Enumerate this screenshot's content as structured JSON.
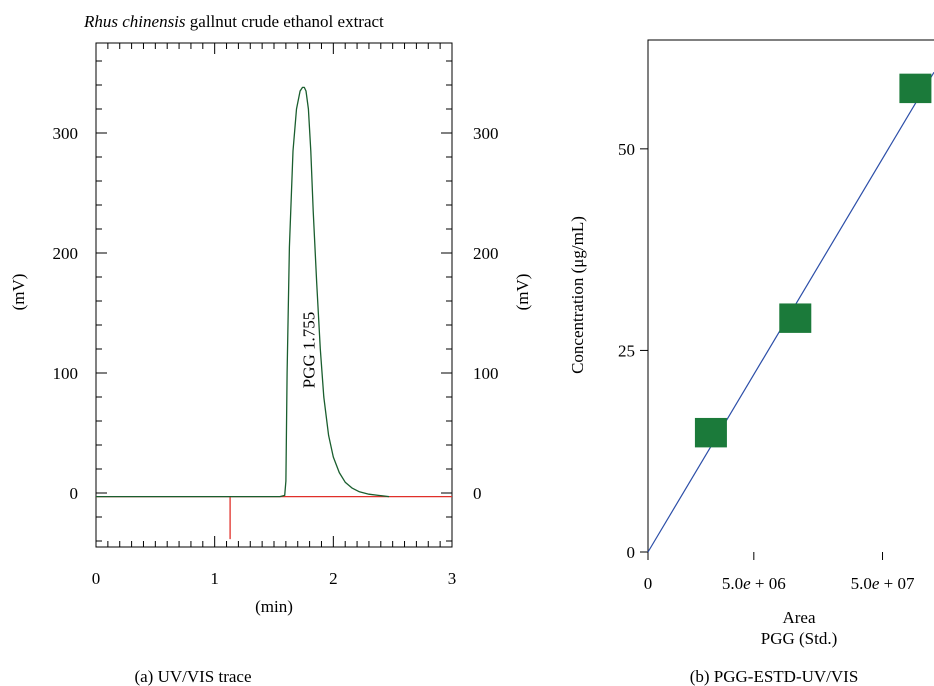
{
  "panel_a": {
    "title_italic": "Rhus chinensis",
    "title_rest": " gallnut crude ethanol extract",
    "xlabel": "(min)",
    "ylabel_left": "(mV)",
    "ylabel_right": "(mV)",
    "caption": "(a)  UV/VIS trace"
  },
  "panel_b": {
    "ylabel": "Concentration (μg/mL)",
    "xlabel_line1": "Area",
    "xlabel_line2": "PGG (Std.)",
    "caption": "(b)  PGG-ESTD-UV/VIS"
  },
  "chart_data": [
    {
      "type": "line",
      "title": "Rhus chinensis gallnut crude ethanol extract",
      "xlabel": "(min)",
      "ylabel": "(mV)",
      "xlim": [
        0,
        3
      ],
      "ylim": [
        -45,
        375
      ],
      "x_ticks": [
        0,
        1,
        2,
        3
      ],
      "y_ticks": [
        0,
        100,
        200,
        300
      ],
      "x_tick_labels": [
        "0",
        "1",
        "2",
        "3"
      ],
      "y_tick_labels": [
        "0",
        "100",
        "200",
        "300"
      ],
      "peak_annotation": {
        "label": "PGG 1.755",
        "x": 1.755
      },
      "series": [
        {
          "color": "#1a5e2e",
          "x": [
            0,
            1.55,
            1.59,
            1.6,
            1.61,
            1.63,
            1.66,
            1.69,
            1.72,
            1.74,
            1.755,
            1.77,
            1.79,
            1.81,
            1.83,
            1.86,
            1.89,
            1.92,
            1.96,
            2.0,
            2.05,
            2.1,
            2.16,
            2.22,
            2.3,
            2.38,
            2.47
          ],
          "y": [
            -3,
            -3,
            -2,
            10,
            100,
            205,
            285,
            320,
            335,
            338,
            338,
            335,
            320,
            285,
            235,
            175,
            120,
            80,
            48,
            30,
            17,
            9,
            4,
            1,
            -1,
            -2,
            -3
          ]
        },
        {
          "color": "#e0302a",
          "x": [
            0,
            1.13,
            1.13,
            1.13,
            3
          ],
          "y": [
            -3,
            -3,
            -38,
            -3,
            -3
          ]
        }
      ]
    },
    {
      "type": "scatter",
      "xlabel": "Area\nPGG (Std.)",
      "ylabel": "Concentration (μg/mL)",
      "ylim": [
        0,
        63.5
      ],
      "y_ticks": [
        0,
        25,
        50
      ],
      "y_tick_labels": [
        "0",
        "25",
        "50"
      ],
      "x_tick_labels": [
        "0",
        "5.0e + 06",
        "5.0e + 07"
      ],
      "series": [
        {
          "color": "#1b7a3a",
          "marker": "square",
          "x_fraction": [
            0.22,
            0.515,
            0.935
          ],
          "y": [
            14.8,
            29.0,
            57.5
          ]
        }
      ],
      "fit_line": {
        "color": "#2c4ea8",
        "from": [
          0,
          0
        ],
        "to": [
          1.0,
          59.5
        ]
      }
    }
  ]
}
